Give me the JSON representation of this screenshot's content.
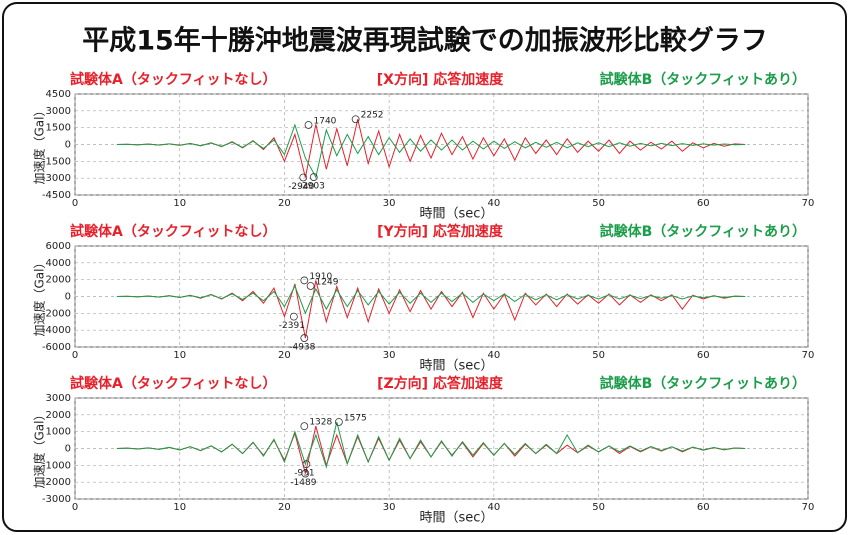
{
  "title": "平成15年十勝沖地震波再現試験での加振波形比較グラフ",
  "chart_data": [
    {
      "type": "line",
      "title": "[X方向] 応答加速度",
      "x_label": "時間（sec）",
      "y_label": "加速度（Gal）",
      "xlim": [
        0,
        70
      ],
      "xticks": [
        0,
        10,
        20,
        30,
        40,
        50,
        60,
        70
      ],
      "ylim": [
        -4500,
        4500
      ],
      "yticks": [
        -4500,
        -3000,
        -1500,
        0,
        1500,
        3000,
        4500
      ],
      "grid": true,
      "x": [
        4,
        5,
        6,
        7,
        8,
        9,
        10,
        11,
        12,
        13,
        14,
        15,
        16,
        17,
        18,
        19,
        20,
        21,
        22,
        23,
        24,
        25,
        26,
        27,
        28,
        29,
        30,
        31,
        32,
        33,
        34,
        35,
        36,
        37,
        38,
        39,
        40,
        41,
        42,
        43,
        44,
        45,
        46,
        47,
        48,
        49,
        50,
        51,
        52,
        53,
        54,
        55,
        56,
        57,
        58,
        59,
        60,
        61,
        62,
        63,
        64
      ],
      "series": [
        {
          "name": "試験体A（タックフィットなし）",
          "color": "#e8202a",
          "values": [
            0,
            20,
            -30,
            40,
            -50,
            60,
            -80,
            100,
            -120,
            150,
            -200,
            250,
            -300,
            350,
            -450,
            600,
            -1500,
            900,
            -2940,
            1800,
            -2200,
            1400,
            -1900,
            2252,
            -1700,
            1200,
            -2000,
            900,
            -1500,
            800,
            -1200,
            1000,
            -900,
            700,
            -1300,
            600,
            -1000,
            500,
            -1400,
            600,
            -800,
            400,
            -900,
            500,
            -700,
            300,
            -600,
            400,
            -800,
            300,
            -500,
            200,
            -400,
            300,
            -600,
            150,
            -300,
            100,
            -150,
            50,
            0
          ]
        },
        {
          "name": "試験体B（タックフィットあり）",
          "color": "#1a9e4a",
          "values": [
            0,
            15,
            -20,
            30,
            -40,
            50,
            -60,
            80,
            -100,
            120,
            -150,
            200,
            -250,
            300,
            -350,
            400,
            -900,
            1740,
            -1200,
            -2903,
            1300,
            -1000,
            900,
            -800,
            700,
            -900,
            600,
            -700,
            500,
            -600,
            400,
            -500,
            400,
            -500,
            300,
            -400,
            300,
            -350,
            250,
            -300,
            200,
            -250,
            200,
            -300,
            150,
            -200,
            150,
            -200,
            150,
            -150,
            100,
            -120,
            100,
            -100,
            80,
            -80,
            60,
            -50,
            40,
            -20,
            0
          ]
        }
      ],
      "annotations": [
        {
          "x": 22.3,
          "value": 1740
        },
        {
          "x": 26.8,
          "value": 2252
        },
        {
          "x": 21.8,
          "value": -2940
        },
        {
          "x": 22.8,
          "value": -2903
        }
      ]
    },
    {
      "type": "line",
      "title": "[Y方向] 応答加速度",
      "x_label": "時間（sec）",
      "y_label": "加速度（Gal）",
      "xlim": [
        0,
        70
      ],
      "xticks": [
        0,
        10,
        20,
        30,
        40,
        50,
        60,
        70
      ],
      "ylim": [
        -6000,
        6000
      ],
      "yticks": [
        -6000,
        -4000,
        -2000,
        0,
        2000,
        4000,
        6000
      ],
      "grid": true,
      "x": [
        4,
        5,
        6,
        7,
        8,
        9,
        10,
        11,
        12,
        13,
        14,
        15,
        16,
        17,
        18,
        19,
        20,
        21,
        22,
        23,
        24,
        25,
        26,
        27,
        28,
        29,
        30,
        31,
        32,
        33,
        34,
        35,
        36,
        37,
        38,
        39,
        40,
        41,
        42,
        43,
        44,
        45,
        46,
        47,
        48,
        49,
        50,
        51,
        52,
        53,
        54,
        55,
        56,
        57,
        58,
        59,
        60,
        61,
        62,
        63,
        64
      ],
      "series": [
        {
          "name": "試験体A（タックフィットなし）",
          "color": "#e8202a",
          "values": [
            0,
            30,
            -40,
            60,
            -80,
            100,
            -120,
            150,
            -200,
            250,
            -300,
            400,
            -500,
            600,
            -800,
            1000,
            -2391,
            1500,
            -4938,
            1910,
            -3000,
            1200,
            -2500,
            1000,
            -3000,
            900,
            -2000,
            800,
            -1800,
            700,
            -1500,
            600,
            -1200,
            500,
            -2500,
            400,
            -1500,
            300,
            -2800,
            400,
            -1000,
            300,
            -1200,
            300,
            -900,
            200,
            -800,
            300,
            -1000,
            200,
            -700,
            200,
            -500,
            200,
            -1500,
            150,
            -300,
            100,
            -200,
            50,
            0
          ]
        },
        {
          "name": "試験体B（タックフィットあり）",
          "color": "#1a9e4a",
          "values": [
            0,
            20,
            -30,
            40,
            -60,
            80,
            -100,
            120,
            -150,
            200,
            -250,
            300,
            -350,
            400,
            -500,
            600,
            -1200,
            1249,
            -2000,
            900,
            -1500,
            800,
            -1200,
            700,
            -1000,
            600,
            -900,
            500,
            -800,
            400,
            -700,
            400,
            -600,
            400,
            -700,
            300,
            -500,
            300,
            -600,
            250,
            -400,
            200,
            -400,
            200,
            -300,
            150,
            -300,
            200,
            -300,
            150,
            -250,
            120,
            -200,
            100,
            -300,
            80,
            -150,
            60,
            -100,
            30,
            0
          ]
        }
      ],
      "annotations": [
        {
          "x": 21.9,
          "value": 1910
        },
        {
          "x": 22.5,
          "value": 1249
        },
        {
          "x": 20.9,
          "value": -2391
        },
        {
          "x": 21.9,
          "value": -4938
        }
      ]
    },
    {
      "type": "line",
      "title": "[Z方向] 応答加速度",
      "x_label": "時間（sec）",
      "y_label": "加速度（Gal）",
      "xlim": [
        0,
        70
      ],
      "xticks": [
        0,
        10,
        20,
        30,
        40,
        50,
        60,
        70
      ],
      "ylim": [
        -3000,
        3000
      ],
      "yticks": [
        -3000,
        -2000,
        -1000,
        0,
        1000,
        2000,
        3000
      ],
      "grid": true,
      "x": [
        4,
        5,
        6,
        7,
        8,
        9,
        10,
        11,
        12,
        13,
        14,
        15,
        16,
        17,
        18,
        19,
        20,
        21,
        22,
        23,
        24,
        25,
        26,
        27,
        28,
        29,
        30,
        31,
        32,
        33,
        34,
        35,
        36,
        37,
        38,
        39,
        40,
        41,
        42,
        43,
        44,
        45,
        46,
        47,
        48,
        49,
        50,
        51,
        52,
        53,
        54,
        55,
        56,
        57,
        58,
        59,
        60,
        61,
        62,
        63,
        64
      ],
      "series": [
        {
          "name": "試験体A（タックフィットなし）",
          "color": "#e8202a",
          "values": [
            0,
            20,
            -30,
            40,
            -50,
            60,
            -80,
            100,
            -120,
            150,
            -200,
            250,
            -300,
            350,
            -400,
            500,
            -700,
            900,
            -1489,
            1328,
            -1000,
            800,
            -900,
            700,
            -800,
            600,
            -700,
            500,
            -600,
            400,
            -500,
            400,
            -400,
            350,
            -500,
            300,
            -400,
            300,
            -450,
            250,
            -300,
            200,
            -300,
            200,
            -250,
            150,
            -200,
            150,
            -300,
            120,
            -200,
            100,
            -150,
            100,
            -200,
            80,
            -100,
            50,
            -80,
            30,
            0
          ]
        },
        {
          "name": "試験体B（タックフィットあり）",
          "color": "#1a9e4a",
          "values": [
            0,
            20,
            -30,
            40,
            -50,
            70,
            -90,
            110,
            -130,
            160,
            -200,
            260,
            -300,
            380,
            -450,
            550,
            -800,
            1000,
            -931,
            800,
            -1100,
            1575,
            -900,
            800,
            -800,
            700,
            -700,
            600,
            -600,
            500,
            -500,
            450,
            -450,
            400,
            -400,
            350,
            -400,
            300,
            -350,
            300,
            -300,
            250,
            -300,
            800,
            -250,
            200,
            -200,
            150,
            -200,
            150,
            -150,
            120,
            -120,
            100,
            -150,
            80,
            -80,
            60,
            -60,
            30,
            0
          ]
        }
      ],
      "annotations": [
        {
          "x": 21.9,
          "value": 1328
        },
        {
          "x": 25.2,
          "value": 1575
        },
        {
          "x": 22.1,
          "value": -931
        },
        {
          "x": 22.0,
          "value": -1489
        }
      ]
    }
  ]
}
